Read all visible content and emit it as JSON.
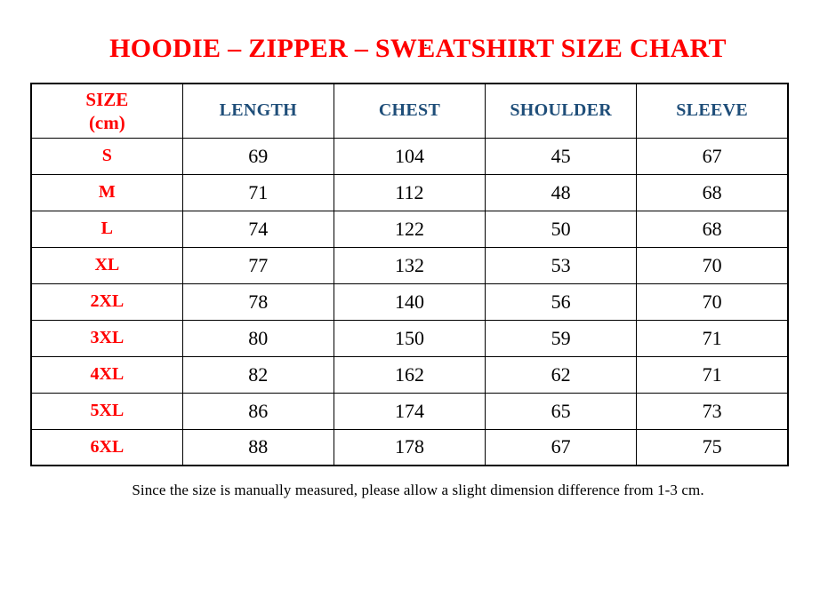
{
  "page": {
    "top_mark": ".",
    "title": "HOODIE – ZIPPER – SWEATSHIRT SIZE CHART",
    "footnote": "Since the size is manually measured, please allow a slight dimension difference from 1-3 cm."
  },
  "colors": {
    "title_red": "#ff0000",
    "header_blue": "#1f4e79",
    "text_black": "#000000",
    "border_black": "#000000"
  },
  "table": {
    "header": {
      "size_line1": "SIZE",
      "size_line2": "(cm)",
      "columns": [
        "LENGTH",
        "CHEST",
        "SHOULDER",
        "SLEEVE"
      ]
    },
    "rows": [
      {
        "size": "S",
        "length": "69",
        "chest": "104",
        "shoulder": "45",
        "sleeve": "67"
      },
      {
        "size": "M",
        "length": "71",
        "chest": "112",
        "shoulder": "48",
        "sleeve": "68"
      },
      {
        "size": "L",
        "length": "74",
        "chest": "122",
        "shoulder": "50",
        "sleeve": "68"
      },
      {
        "size": "XL",
        "length": "77",
        "chest": "132",
        "shoulder": "53",
        "sleeve": "70"
      },
      {
        "size": "2XL",
        "length": "78",
        "chest": "140",
        "shoulder": "56",
        "sleeve": "70"
      },
      {
        "size": "3XL",
        "length": "80",
        "chest": "150",
        "shoulder": "59",
        "sleeve": "71"
      },
      {
        "size": "4XL",
        "length": "82",
        "chest": "162",
        "shoulder": "62",
        "sleeve": "71"
      },
      {
        "size": "5XL",
        "length": "86",
        "chest": "174",
        "shoulder": "65",
        "sleeve": "73"
      },
      {
        "size": "6XL",
        "length": "88",
        "chest": "178",
        "shoulder": "67",
        "sleeve": "75"
      }
    ]
  }
}
